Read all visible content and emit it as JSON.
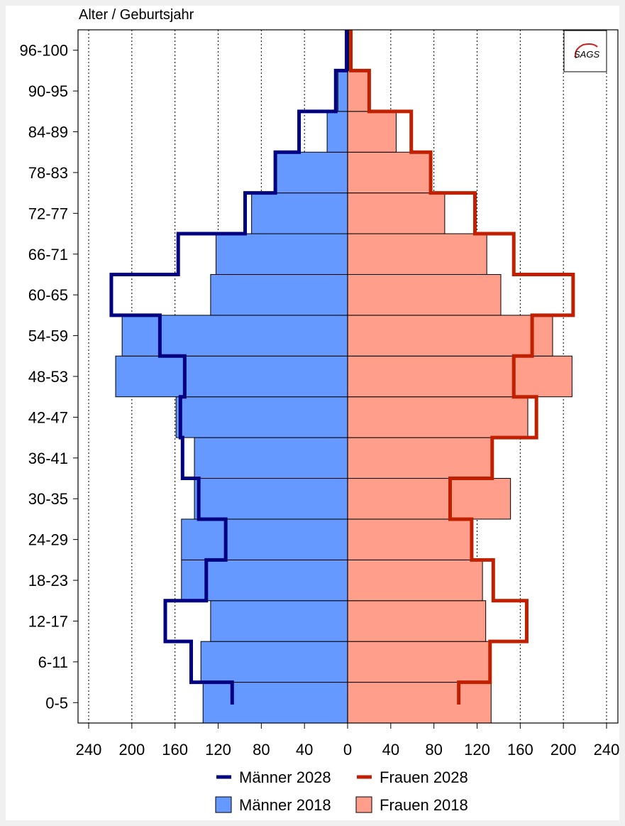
{
  "chart_data": {
    "type": "bar",
    "orientation": "population-pyramid",
    "ylabel": "Alter / Geburtsjahr",
    "categories": [
      "0-5",
      "6-11",
      "12-17",
      "18-23",
      "24-29",
      "30-35",
      "36-41",
      "42-47",
      "48-53",
      "54-59",
      "60-65",
      "66-71",
      "72-77",
      "78-83",
      "84-89",
      "90-95",
      "96-100"
    ],
    "xticks": [
      240,
      200,
      160,
      120,
      80,
      40,
      0,
      40,
      80,
      120,
      160,
      200,
      240
    ],
    "xlim": [
      -240,
      240
    ],
    "grid": true,
    "legend_position": "bottom",
    "series": [
      {
        "name": "Männer 2018",
        "kind": "bar",
        "side": "left",
        "color": "#6699ff",
        "values": [
          134,
          136,
          127,
          154,
          154,
          142,
          142,
          159,
          215,
          209,
          127,
          122,
          89,
          67,
          19,
          9,
          1
        ]
      },
      {
        "name": "Frauen 2018",
        "kind": "bar",
        "side": "right",
        "color": "#ff9e8a",
        "values": [
          133,
          132,
          128,
          125,
          114,
          151,
          134,
          167,
          208,
          190,
          142,
          129,
          90,
          77,
          45,
          19,
          1
        ]
      },
      {
        "name": "Männer 2028",
        "kind": "step",
        "side": "left",
        "color": "#000080",
        "values": [
          107,
          145,
          169,
          131,
          113,
          138,
          153,
          155,
          151,
          174,
          219,
          157,
          95,
          67,
          45,
          11,
          1
        ]
      },
      {
        "name": "Frauen 2028",
        "kind": "step",
        "side": "right",
        "color": "#c02000",
        "values": [
          103,
          132,
          166,
          135,
          115,
          95,
          134,
          175,
          154,
          171,
          209,
          154,
          118,
          77,
          59,
          20,
          3
        ]
      }
    ],
    "logo_text": "SAGS"
  }
}
